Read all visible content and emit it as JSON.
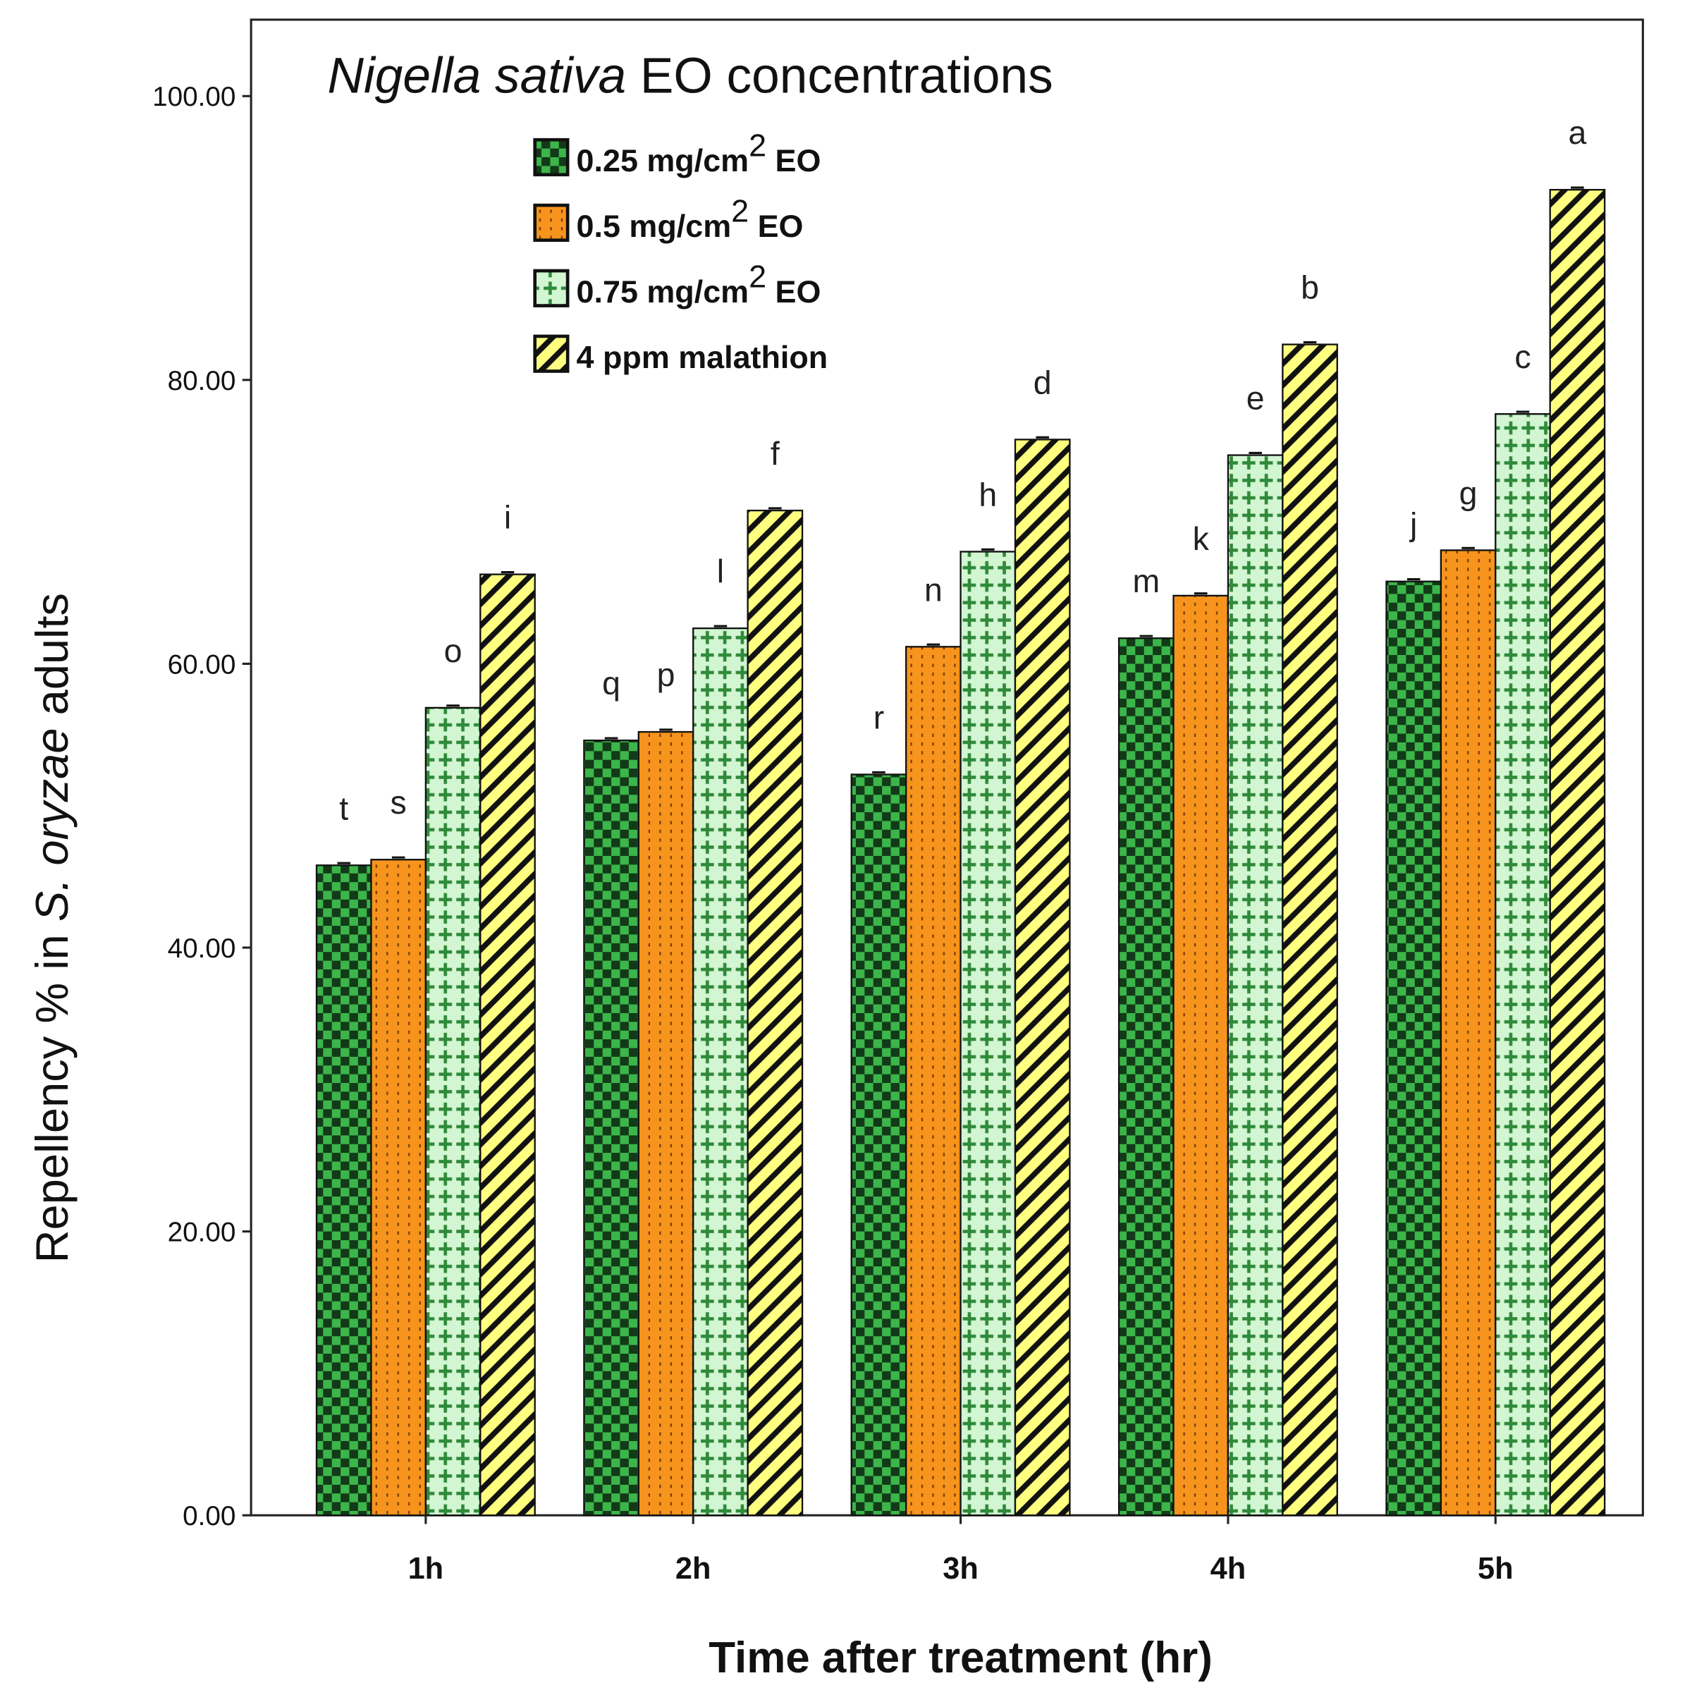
{
  "chart_data": {
    "type": "bar",
    "title": "Nigella sativa EO concentrations",
    "title_italic_part": "Nigella sativa",
    "title_rest": " EO concentrations",
    "xlabel": "Time after treatment (hr)",
    "ylabel_parts": [
      "Repellency % in ",
      "S. oryzae",
      " adults"
    ],
    "ylim": [
      0,
      100
    ],
    "yticks": [
      0,
      20,
      40,
      60,
      80,
      100
    ],
    "ytick_labels": [
      "0.00",
      "20.00",
      "40.00",
      "60.00",
      "80.00",
      "100.00"
    ],
    "categories": [
      "1h",
      "2h",
      "3h",
      "4h",
      "5h"
    ],
    "legend_placement": "top-left",
    "series": [
      {
        "name": "0.25 mg/cm2 EO",
        "legend": [
          "0.25 mg/cm",
          "2",
          " EO"
        ],
        "color": "#3cb54a",
        "pattern": "checker",
        "values": [
          45.8,
          54.6,
          52.2,
          61.8,
          65.8
        ],
        "letters": [
          "t",
          "q",
          "r",
          "m",
          "j"
        ]
      },
      {
        "name": "0.5 mg/cm2 EO",
        "legend": [
          "0.5 mg/cm",
          "2",
          " EO"
        ],
        "color": "#f7941d",
        "pattern": "dots",
        "values": [
          46.2,
          55.2,
          61.2,
          64.8,
          68.0
        ],
        "letters": [
          "s",
          "p",
          "n",
          "k",
          "g"
        ]
      },
      {
        "name": "0.75 mg/cm2 EO",
        "legend": [
          "0.75 mg/cm",
          "2",
          "  EO"
        ],
        "color": "#d2f5d2",
        "pattern": "plus",
        "values": [
          56.9,
          62.5,
          67.9,
          74.7,
          77.6
        ],
        "letters": [
          "o",
          "l",
          "h",
          "e",
          "c"
        ]
      },
      {
        "name": "4 ppm malathion",
        "legend": [
          "4 ppm malathion",
          "",
          ""
        ],
        "color": "#ffff80",
        "pattern": "stripes",
        "values": [
          66.3,
          70.8,
          75.8,
          82.5,
          93.4
        ],
        "letters": [
          "i",
          "f",
          "d",
          "b",
          "a"
        ]
      }
    ]
  }
}
